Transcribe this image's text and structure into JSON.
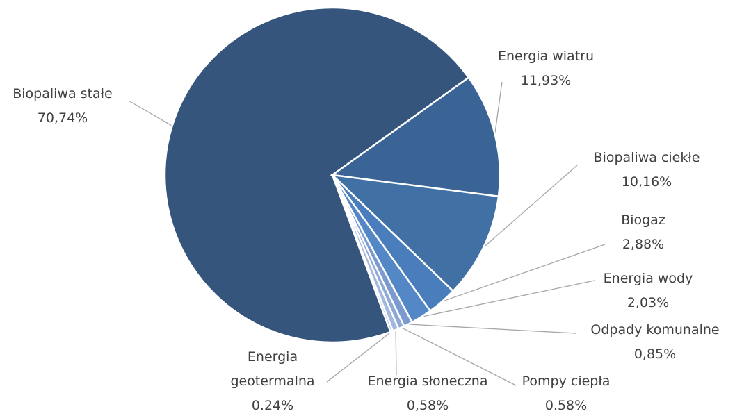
{
  "chart_data": {
    "type": "pie",
    "categories": [
      "Biopaliwa stałe",
      "Energia wiatru",
      "Biopaliwa ciekłe",
      "Biogaz",
      "Energia wody",
      "Odpady komunalne",
      "Pompy ciepła",
      "Energia słoneczna",
      "Energia geotermalna"
    ],
    "values": [
      70.74,
      11.93,
      10.16,
      2.88,
      2.03,
      0.85,
      0.58,
      0.58,
      0.24
    ],
    "value_labels": [
      "70,74%",
      "11,93%",
      "10,16%",
      "2,88%",
      "2,03%",
      "0,85%",
      "0.58%",
      "0,58%",
      "0.24%"
    ],
    "colors": [
      "#35557d",
      "#3b6496",
      "#4170a5",
      "#4a7dbb",
      "#5487c6",
      "#7b9bd0",
      "#8ea9d6",
      "#a3b8de",
      "#b8c8e6"
    ]
  }
}
